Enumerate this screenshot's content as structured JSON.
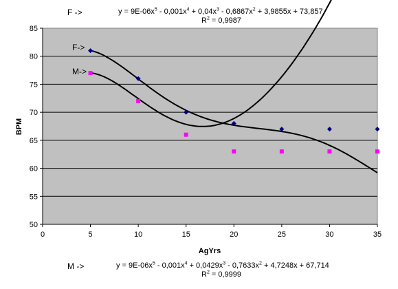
{
  "equations": {
    "top": {
      "label": "F ->",
      "formula": [
        {
          "t": "y = 9E-06x"
        },
        {
          "s": "5"
        },
        {
          "t": " - 0,001x"
        },
        {
          "s": "4"
        },
        {
          "t": " + 0,04x"
        },
        {
          "s": "3"
        },
        {
          "t": " - 0,6867x"
        },
        {
          "s": "2"
        },
        {
          "t": " + 3,9855x + 73,857"
        }
      ],
      "r2": [
        {
          "t": "R"
        },
        {
          "s": "2"
        },
        {
          "t": " = 0,9987"
        }
      ]
    },
    "bottom": {
      "label": "M ->",
      "formula": [
        {
          "t": "y = 9E-06x"
        },
        {
          "s": "5"
        },
        {
          "t": " - 0,001x"
        },
        {
          "s": "4"
        },
        {
          "t": " + 0,0429x"
        },
        {
          "s": "3"
        },
        {
          "t": " - 0,7633x"
        },
        {
          "s": "2"
        },
        {
          "t": " + 4,7248x + 67,714"
        }
      ],
      "r2": [
        {
          "t": "R"
        },
        {
          "s": "2"
        },
        {
          "t": " = 0,9999"
        }
      ]
    }
  },
  "chart_data": {
    "type": "scatter",
    "xlabel": "AgYrs",
    "ylabel": "BPM",
    "xlim": [
      0,
      35
    ],
    "ylim": [
      50,
      85
    ],
    "xticks": [
      "0",
      "5",
      "10",
      "15",
      "20",
      "25",
      "30",
      "35"
    ],
    "yticks": [
      "50",
      "55",
      "60",
      "65",
      "70",
      "75",
      "80",
      "85"
    ],
    "grid": true,
    "background": "#c0c0c0",
    "series": [
      {
        "name": "F->",
        "color": "#000080",
        "marker": "diamond",
        "x": [
          5,
          10,
          15,
          20,
          25,
          30,
          35
        ],
        "y": [
          81,
          76,
          70,
          68,
          67,
          67,
          67
        ],
        "trend": [
          9e-06,
          -0.001,
          0.04,
          -0.6867,
          3.9855,
          73.857
        ]
      },
      {
        "name": "M->",
        "color": "#ff00ff",
        "marker": "square",
        "x": [
          5,
          10,
          15,
          20,
          25,
          30,
          35
        ],
        "y": [
          77,
          72,
          66,
          63,
          63,
          63,
          63
        ],
        "trend": [
          9e-06,
          -0.001,
          0.0429,
          -0.7633,
          4.7248,
          67.714
        ]
      }
    ]
  }
}
